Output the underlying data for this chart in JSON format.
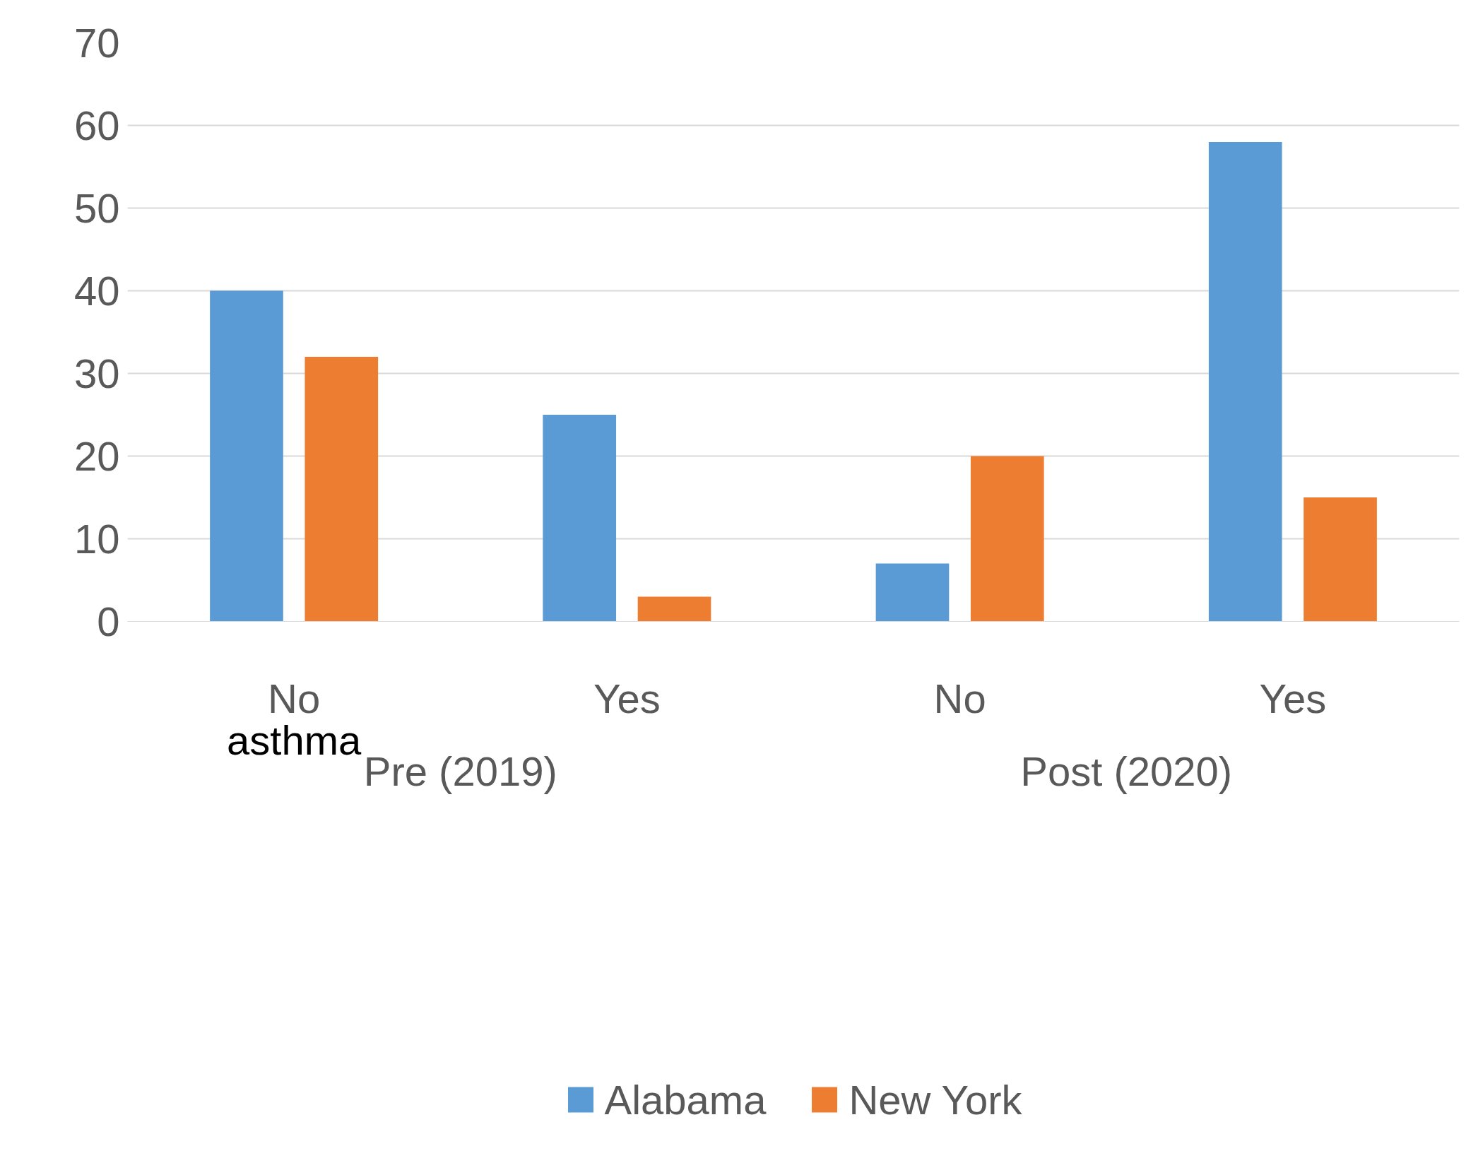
{
  "chart_data": {
    "type": "bar",
    "categories": [
      "No",
      "Yes",
      "No",
      "Yes"
    ],
    "series": [
      {
        "name": "Alabama",
        "color": "#5b9bd5",
        "values": [
          40,
          25,
          7,
          58
        ]
      },
      {
        "name": "New York",
        "color": "#ed7d31",
        "values": [
          32,
          3,
          20,
          15
        ]
      }
    ],
    "ylim": [
      0,
      70
    ],
    "yticks": [
      0,
      10,
      20,
      30,
      40,
      50,
      60,
      70
    ],
    "grid": "y",
    "legend": "bottom",
    "annotations": [
      "asthma",
      "Pre (2019)",
      "Post (2020)"
    ]
  }
}
